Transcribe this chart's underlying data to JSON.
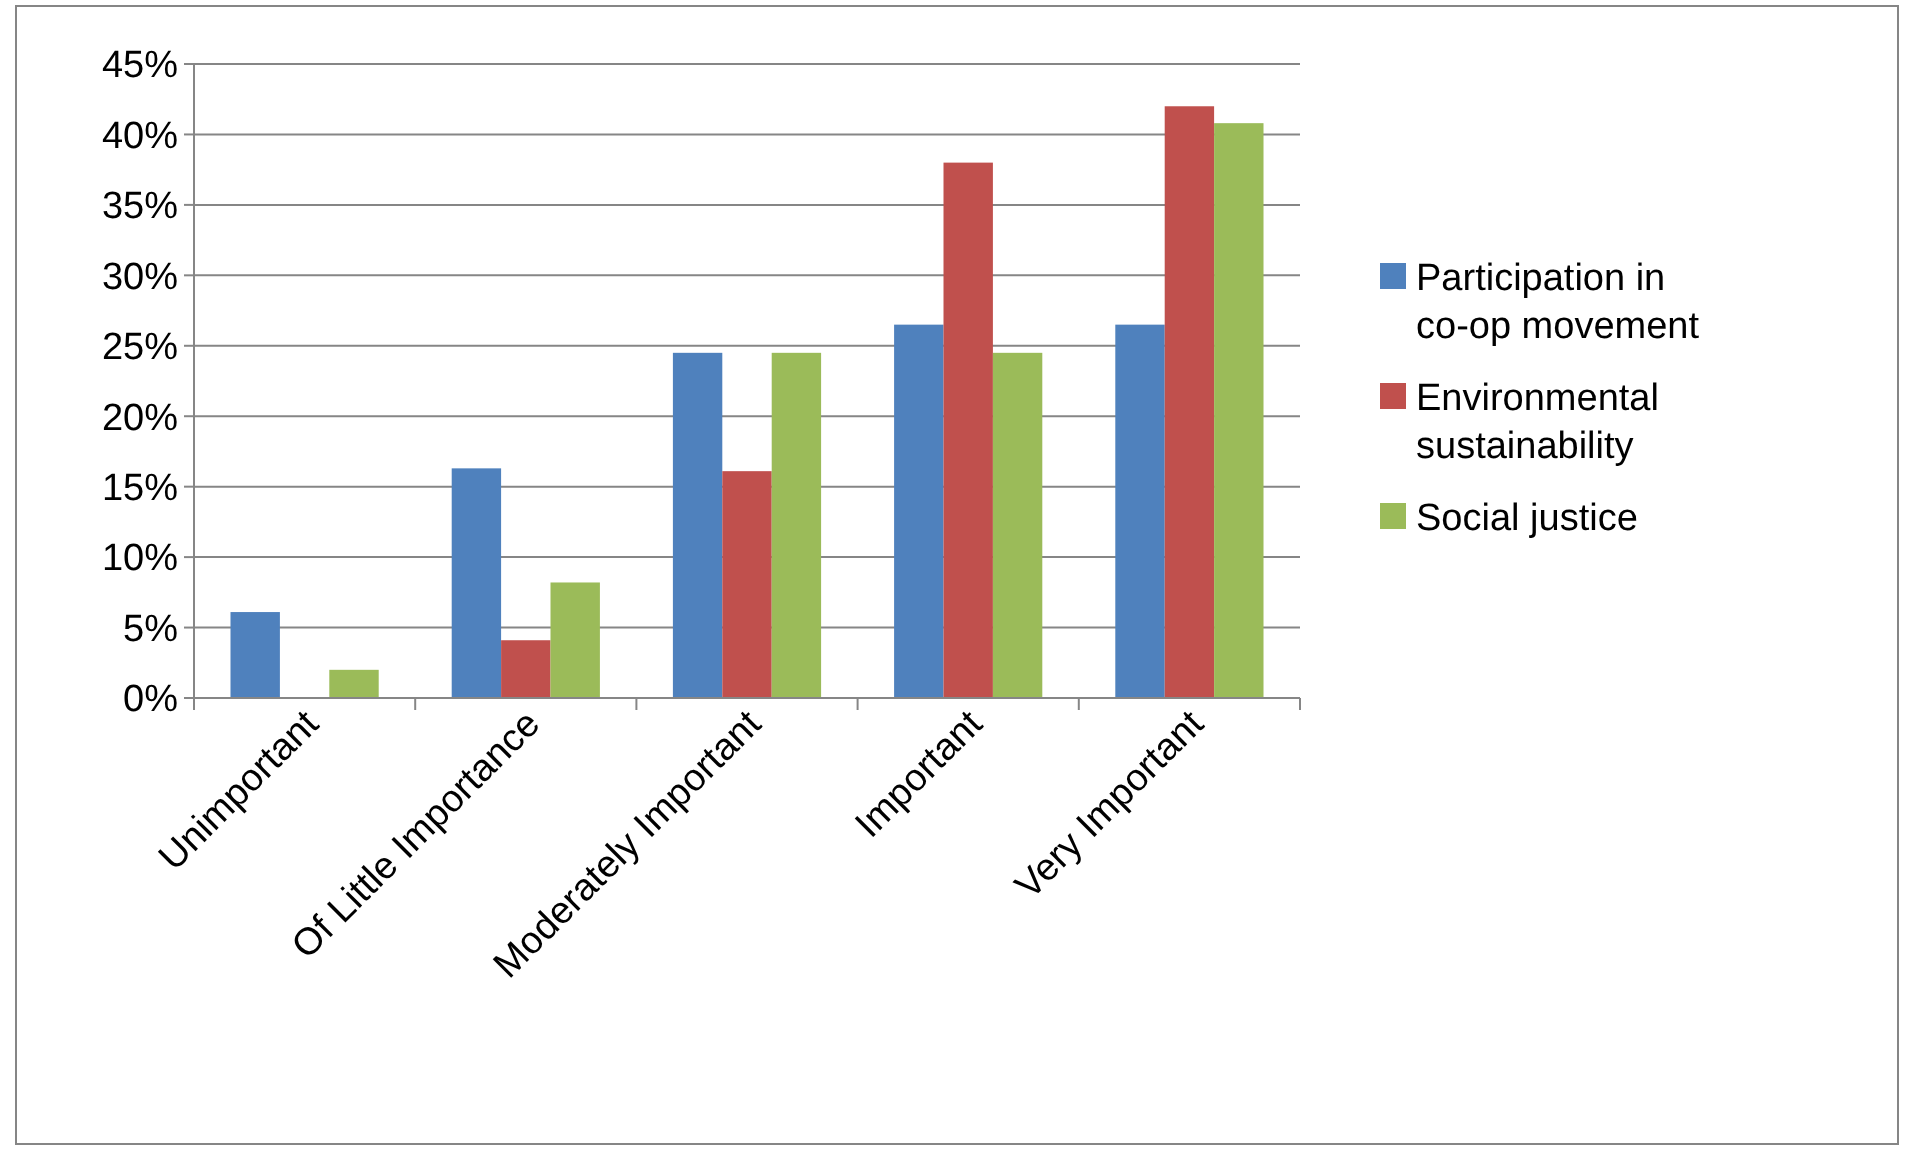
{
  "chart_data": {
    "type": "bar",
    "categories": [
      "Unimportant",
      "Of Little Importance",
      "Moderately Important",
      "Important",
      "Very Important"
    ],
    "series": [
      {
        "name": "Participation in co-op movement",
        "color": "#4f81bd",
        "values": [
          6.1,
          16.3,
          24.5,
          26.5,
          26.5
        ]
      },
      {
        "name": "Environmental sustainability",
        "color": "#c0504d",
        "values": [
          0,
          4.1,
          16.1,
          38,
          42
        ]
      },
      {
        "name": "Social justice",
        "color": "#9bbb59",
        "values": [
          2,
          8.2,
          24.5,
          24.5,
          40.8
        ]
      }
    ],
    "ylim": [
      0,
      45
    ],
    "yticks": [
      {
        "value": 0,
        "label": "0%"
      },
      {
        "value": 5,
        "label": "5%"
      },
      {
        "value": 10,
        "label": "10%"
      },
      {
        "value": 15,
        "label": "15%"
      },
      {
        "value": 20,
        "label": "20%"
      },
      {
        "value": 25,
        "label": "25%"
      },
      {
        "value": 30,
        "label": "30%"
      },
      {
        "value": 35,
        "label": "35%"
      },
      {
        "value": 40,
        "label": "40%"
      },
      {
        "value": 45,
        "label": "45%"
      }
    ],
    "grid": "y",
    "legend": "right"
  }
}
